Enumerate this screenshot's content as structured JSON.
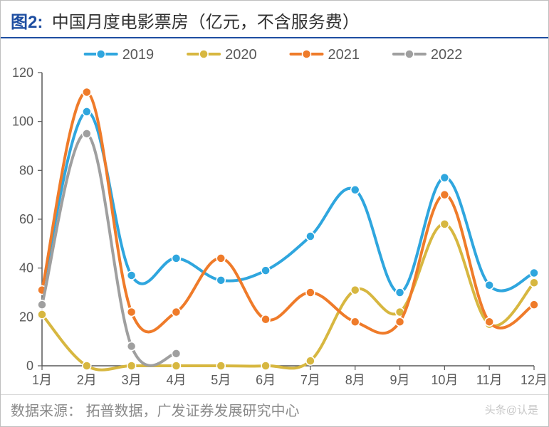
{
  "figure_label": "图2:",
  "title": "中国月度电影票房（亿元，不含服务费）",
  "source_label": "数据来源：",
  "source_text": "拓普数据，广发证券发展研究中心",
  "watermark": "头条@认是",
  "chart": {
    "type": "line",
    "background_color": "#ffffff",
    "plot_border_color": "#595959",
    "plot_border_width": 1.5,
    "grid": false,
    "categories": [
      "1月",
      "2月",
      "3月",
      "4月",
      "5月",
      "6月",
      "7月",
      "8月",
      "9月",
      "10月",
      "11月",
      "12月"
    ],
    "xlabel": "",
    "ylabel": "",
    "axis_tick_color": "#595959",
    "axis_label_fontsize": 18,
    "axis_label_color": "#595959",
    "ylim": [
      0,
      120
    ],
    "ytick_step": 20,
    "yticks": [
      0,
      20,
      40,
      60,
      80,
      100,
      120
    ],
    "tick_length": 6,
    "line_width": 4,
    "marker_radius": 6,
    "marker_style": "circle",
    "legend": {
      "position": "top-center",
      "fontsize": 20,
      "text_color": "#595959",
      "line_length": 44,
      "gap": 46
    },
    "series": [
      {
        "name": "2019",
        "color": "#2fa6de",
        "values": [
          31,
          104,
          37,
          44,
          35,
          39,
          53,
          72,
          30,
          77,
          33,
          38
        ]
      },
      {
        "name": "2020",
        "color": "#d7b740",
        "values": [
          21,
          0,
          0,
          0,
          0,
          0,
          2,
          31,
          22,
          58,
          17,
          34
        ]
      },
      {
        "name": "2021",
        "color": "#ef7b2a",
        "values": [
          31,
          112,
          22,
          22,
          44,
          19,
          30,
          18,
          18,
          70,
          18,
          25
        ]
      },
      {
        "name": "2022",
        "color": "#9f9f9f",
        "values": [
          25,
          95,
          8,
          5,
          null,
          null,
          null,
          null,
          null,
          null,
          null,
          null
        ]
      }
    ]
  }
}
